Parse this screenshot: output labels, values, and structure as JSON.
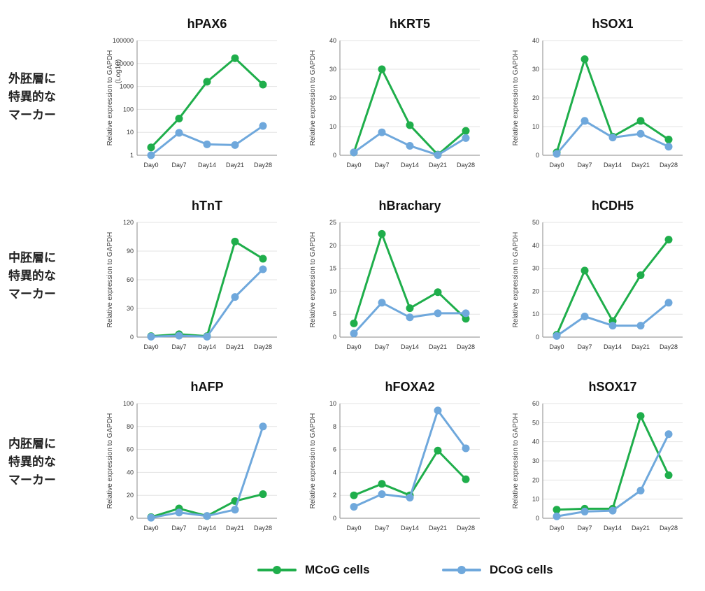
{
  "colors": {
    "mcog": "#1fae4b",
    "dcog": "#6fa8dc",
    "grid": "#e3e3e3",
    "axis": "#888888"
  },
  "row_labels": {
    "ectoderm": "外胚層に\n特異的な\nマーカー",
    "mesoderm": "中胚層に\n特異的な\nマーカー",
    "endoderm": "内胚層に\n特異的な\nマーカー"
  },
  "legend": {
    "mcog": "MCoG cells",
    "dcog": "DCoG cells"
  },
  "chart_data": [
    {
      "type": "line",
      "title": "hPAX6",
      "ylabel": "Relative expression to GAPDH",
      "ylabel2": "(Log10)",
      "yscale": "log",
      "ylim": [
        1,
        100000
      ],
      "yticks": [
        1,
        10,
        100,
        1000,
        10000,
        100000
      ],
      "categories": [
        "Day0",
        "Day7",
        "Day14",
        "Day21",
        "Day28"
      ],
      "series": [
        {
          "name": "MCoG cells",
          "values": [
            2.2,
            40,
            1600,
            17000,
            1200
          ]
        },
        {
          "name": "DCoG cells",
          "values": [
            1,
            9.5,
            3,
            2.8,
            19
          ]
        }
      ]
    },
    {
      "type": "line",
      "title": "hKRT5",
      "ylabel": "Relative expression to GAPDH",
      "ylim": [
        0,
        40
      ],
      "yticks": [
        0,
        10,
        20,
        30,
        40
      ],
      "categories": [
        "Day0",
        "Day7",
        "Day14",
        "Day21",
        "Day28"
      ],
      "series": [
        {
          "name": "MCoG cells",
          "values": [
            1,
            30,
            10.5,
            0.2,
            8.5
          ]
        },
        {
          "name": "DCoG cells",
          "values": [
            1,
            8,
            3.3,
            0.1,
            6
          ]
        }
      ]
    },
    {
      "type": "line",
      "title": "hSOX1",
      "ylabel": "Relative expression to GAPDH",
      "ylim": [
        0,
        40
      ],
      "yticks": [
        0,
        10,
        20,
        30,
        40
      ],
      "categories": [
        "Day0",
        "Day7",
        "Day14",
        "Day21",
        "Day28"
      ],
      "series": [
        {
          "name": "MCoG cells",
          "values": [
            1,
            33.5,
            6.5,
            12,
            5.5
          ]
        },
        {
          "name": "DCoG cells",
          "values": [
            0.5,
            12,
            6.2,
            7.5,
            3
          ]
        }
      ]
    },
    {
      "type": "line",
      "title": "hTnT",
      "ylabel": "Relative expression to GAPDH",
      "ylim": [
        0,
        120
      ],
      "yticks": [
        0,
        30,
        60,
        90,
        120
      ],
      "categories": [
        "Day0",
        "Day7",
        "Day14",
        "Day21",
        "Day28"
      ],
      "series": [
        {
          "name": "MCoG cells",
          "values": [
            1,
            3,
            1,
            100,
            82
          ]
        },
        {
          "name": "DCoG cells",
          "values": [
            0.5,
            1.5,
            0.5,
            42,
            71
          ]
        }
      ]
    },
    {
      "type": "line",
      "title": "hBrachary",
      "ylabel": "Relative expression to GAPDH",
      "ylim": [
        0,
        25
      ],
      "yticks": [
        0,
        5,
        10,
        15,
        20,
        25
      ],
      "categories": [
        "Day0",
        "Day7",
        "Day14",
        "Day21",
        "Day28"
      ],
      "series": [
        {
          "name": "MCoG cells",
          "values": [
            3,
            22.5,
            6.3,
            9.8,
            4
          ]
        },
        {
          "name": "DCoG cells",
          "values": [
            0.8,
            7.5,
            4.3,
            5.2,
            5.2
          ]
        }
      ]
    },
    {
      "type": "line",
      "title": "hCDH5",
      "ylabel": "Relative expression to GAPDH",
      "ylim": [
        0,
        50
      ],
      "yticks": [
        0,
        10,
        20,
        30,
        40,
        50
      ],
      "categories": [
        "Day0",
        "Day7",
        "Day14",
        "Day21",
        "Day28"
      ],
      "series": [
        {
          "name": "MCoG cells",
          "values": [
            1,
            29,
            7,
            27,
            42.5
          ]
        },
        {
          "name": "DCoG cells",
          "values": [
            0.5,
            9,
            5,
            5,
            15
          ]
        }
      ]
    },
    {
      "type": "line",
      "title": "hAFP",
      "ylabel": "Relative expression to GAPDH",
      "ylim": [
        0,
        100
      ],
      "yticks": [
        0,
        20,
        40,
        60,
        80,
        100
      ],
      "categories": [
        "Day0",
        "Day7",
        "Day14",
        "Day21",
        "Day28"
      ],
      "series": [
        {
          "name": "MCoG cells",
          "values": [
            1,
            8.5,
            2,
            15,
            21
          ]
        },
        {
          "name": "DCoG cells",
          "values": [
            0.5,
            5,
            2,
            7.5,
            80
          ]
        }
      ]
    },
    {
      "type": "line",
      "title": "hFOXA2",
      "ylabel": "Relative expression to GAPDH",
      "ylim": [
        0,
        10
      ],
      "yticks": [
        0,
        2,
        4,
        6,
        8,
        10
      ],
      "categories": [
        "Day0",
        "Day7",
        "Day14",
        "Day21",
        "Day28"
      ],
      "series": [
        {
          "name": "MCoG cells",
          "values": [
            2,
            3,
            2,
            5.9,
            3.4
          ]
        },
        {
          "name": "DCoG cells",
          "values": [
            1,
            2.1,
            1.8,
            9.4,
            6.1
          ]
        }
      ]
    },
    {
      "type": "line",
      "title": "hSOX17",
      "ylabel": "Relative expression to GAPDH",
      "ylim": [
        0,
        60
      ],
      "yticks": [
        0,
        10,
        20,
        30,
        40,
        50,
        60
      ],
      "categories": [
        "Day0",
        "Day7",
        "Day14",
        "Day21",
        "Day28"
      ],
      "series": [
        {
          "name": "MCoG cells",
          "values": [
            4.5,
            5,
            5,
            53.5,
            22.5
          ]
        },
        {
          "name": "DCoG cells",
          "values": [
            1,
            3.5,
            4,
            14.5,
            44
          ]
        }
      ]
    }
  ]
}
